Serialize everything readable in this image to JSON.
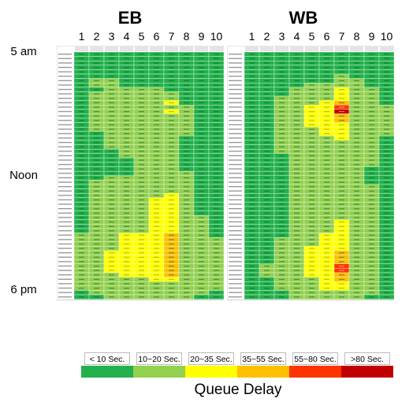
{
  "chart_data": {
    "type": "heatmap",
    "panels": [
      {
        "title": "EB",
        "columns": [
          "1",
          "2",
          "3",
          "4",
          "5",
          "6",
          "7",
          "8",
          "9",
          "10"
        ]
      },
      {
        "title": "WB",
        "columns": [
          "1",
          "2",
          "3",
          "4",
          "5",
          "6",
          "7",
          "8",
          "9",
          "10"
        ]
      }
    ],
    "row_labels": [
      {
        "label": "5 am",
        "row": 0
      },
      {
        "label": "Noon",
        "row": 28
      },
      {
        "label": "6 pm",
        "row": 54
      }
    ],
    "time_rows": 56,
    "row_interval_minutes": 15,
    "legend": {
      "title": "Queue Delay",
      "bins": [
        {
          "label": "< 10 Sec.",
          "color": "#22b14c"
        },
        {
          "label": "10~20 Sec.",
          "color": "#92d050"
        },
        {
          "label": "20~35 Sec.",
          "color": "#ffff00"
        },
        {
          "label": "35~55 Sec.",
          "color": "#ffc000"
        },
        {
          "label": "55~80 Sec.",
          "color": "#ff3300"
        },
        {
          "label": ">80 Sec.",
          "color": "#c00000"
        }
      ]
    },
    "eb_cells": [
      "0000000000",
      "0000000000",
      "0000000000",
      "0000000000",
      "0000000000",
      "0000000000",
      "0110000000",
      "0110000000",
      "0011110000",
      "0111111000",
      "0111111000",
      "0111112000",
      "0111111100",
      "0111112100",
      "0111111100",
      "0111111100",
      "0111111100",
      "0111111100",
      "0011111100",
      "0011111000",
      "0011111000",
      "0011111000",
      "0001111000",
      "0001111000",
      "0000111000",
      "0000111000",
      "0000111000",
      "0000111100",
      "0011111100",
      "0111111100",
      "0111111100",
      "0111111100",
      "0111112100",
      "0111122100",
      "0111122100",
      "0111122100",
      "0111122100",
      "0111122110",
      "0111122110",
      "0111122110",
      "0111122110",
      "1112223110",
      "1112223111",
      "1112223111",
      "1112223111",
      "1122223111",
      "1122223111",
      "1122223111",
      "1122223111",
      "1122223111",
      "1112223111",
      "1111122111",
      "1111111111",
      "1111111111",
      "0111111110",
      "0011111100"
    ],
    "wb_cells": [
      "0000000000",
      "0000000000",
      "0000000000",
      "0000000000",
      "0000000000",
      "0000001000",
      "0000001100",
      "0000111100",
      "0001112110",
      "0001112110",
      "0011112110",
      "0011123110",
      "0011224111",
      "0011225111",
      "0011223111",
      "0011223111",
      "0011222111",
      "0011122111",
      "0011122111",
      "0011112110",
      "0011111110",
      "0011111110",
      "0011111110",
      "0001111110",
      "0001111110",
      "0001111110",
      "0001111100",
      "0001111100",
      "0001111100",
      "0001111100",
      "0001111110",
      "0001111110",
      "0001111110",
      "0001111110",
      "0001111110",
      "0001111110",
      "0001111110",
      "0001111110",
      "0001112110",
      "0001112110",
      "0001112110",
      "0001122110",
      "0011122110",
      "0011122110",
      "0011222110",
      "0011223110",
      "0011223110",
      "0011223110",
      "0111224110",
      "0111224110",
      "0111223110",
      "0011123110",
      "0011122110",
      "0011122110",
      "0001111110",
      "0001111100"
    ]
  }
}
